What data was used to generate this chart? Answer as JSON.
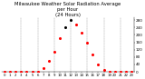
{
  "title": "Milwaukee Weather Solar Radiation Average\nper Hour\n(24 Hours)",
  "hours": [
    0,
    1,
    2,
    3,
    4,
    5,
    6,
    7,
    8,
    9,
    10,
    11,
    12,
    13,
    14,
    15,
    16,
    17,
    18,
    19,
    20,
    21,
    22,
    23
  ],
  "values": [
    0,
    0,
    0,
    0,
    0,
    0,
    2,
    18,
    60,
    110,
    180,
    240,
    280,
    255,
    210,
    160,
    95,
    40,
    8,
    0,
    0,
    0,
    0,
    0
  ],
  "dot_colors": [
    "red",
    "red",
    "red",
    "red",
    "red",
    "red",
    "red",
    "red",
    "red",
    "red",
    "red",
    "black",
    "black",
    "red",
    "red",
    "red",
    "red",
    "red",
    "red",
    "red",
    "red",
    "red",
    "red",
    "red"
  ],
  "grid_color": "#888888",
  "bg_color": "#ffffff",
  "title_color": "#000000",
  "title_fontsize": 3.8,
  "ylim": [
    0,
    295
  ],
  "yticks": [
    0,
    40,
    80,
    120,
    160,
    200,
    240,
    280
  ],
  "ytick_labels": [
    "0",
    "40",
    "80",
    "120",
    "160",
    "200",
    "240",
    "280"
  ],
  "ylabel_fontsize": 3.0,
  "xlabel_fontsize": 2.8,
  "xtick_positions": [
    0,
    1,
    2,
    3,
    4,
    5,
    6,
    7,
    8,
    9,
    10,
    11,
    12,
    13,
    14,
    15,
    16,
    17,
    18,
    19,
    20,
    21,
    22,
    23
  ],
  "xtick_labels": [
    "0",
    "1",
    "2",
    "3",
    "4",
    "5",
    "6",
    "7",
    "8",
    "9",
    "10",
    "11",
    "12",
    "13",
    "14",
    "15",
    "16",
    "17",
    "18",
    "19",
    "20",
    "21",
    "22",
    "23"
  ],
  "grid_positions": [
    3,
    6,
    9,
    12,
    15,
    18,
    21
  ],
  "marker_size": 1.2
}
